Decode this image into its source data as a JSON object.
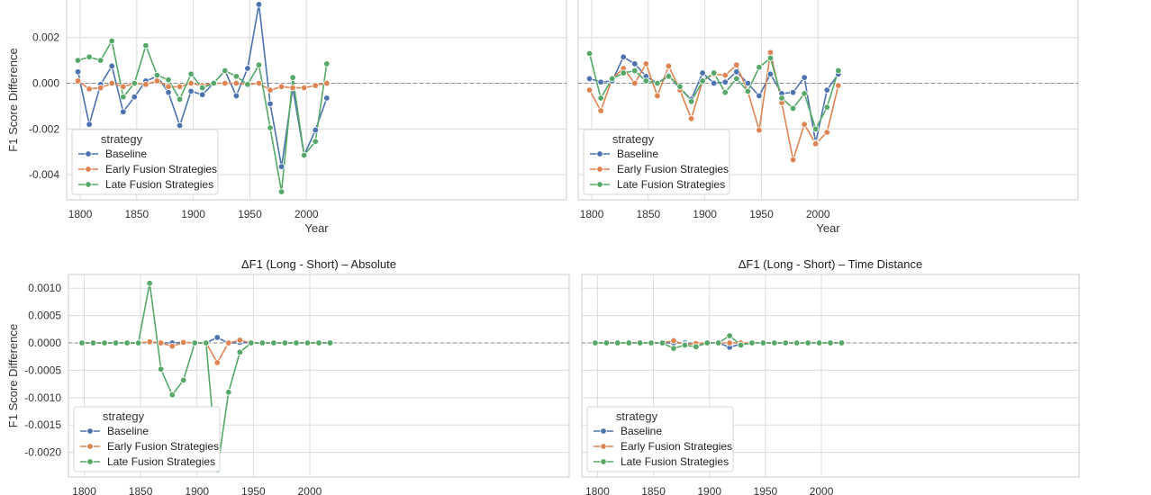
{
  "chart_data": [
    {
      "type": "line",
      "title": "",
      "xlabel": "Year",
      "ylabel": "F1 Score Difference",
      "xlim": [
        1788,
        2230
      ],
      "ylim": [
        -0.0051,
        0.0038
      ],
      "xticks": [
        "1800",
        "1850",
        "1900",
        "1950",
        "2000"
      ],
      "yticks": [
        "-0.004",
        "-0.002",
        "0.000",
        "0.002"
      ],
      "legend": {
        "title": "strategy",
        "placement": "lower-left"
      },
      "x": [
        1798,
        1808,
        1818,
        1828,
        1838,
        1848,
        1858,
        1868,
        1878,
        1888,
        1898,
        1908,
        1918,
        1928,
        1938,
        1948,
        1958,
        1968,
        1978,
        1988,
        1998,
        2008,
        2018
      ],
      "series": [
        {
          "name": "Baseline",
          "color": "#4c72b0",
          "values": [
            0.0005,
            -0.0018,
            -5e-05,
            0.00075,
            -0.00125,
            -0.0006,
            0.0001,
            0.0003,
            -0.0004,
            -0.00185,
            -0.00035,
            -0.0005,
            0.0,
            0.00055,
            -0.00055,
            0.00065,
            0.00345,
            -0.0009,
            -0.00365,
            -0.0002,
            -0.00315,
            -0.00205,
            -0.00065
          ]
        },
        {
          "name": "Early Fusion Strategies",
          "color": "#dd8452",
          "values": [
            0.0001,
            -0.00025,
            -0.0002,
            0.0,
            -0.00015,
            0.0,
            -5e-05,
            0.0001,
            -0.00015,
            -0.00015,
            0.0,
            -0.0001,
            0.0,
            0.0,
            0.0,
            -5e-05,
            0.0,
            -0.0003,
            -0.00015,
            -0.0002,
            -0.0002,
            -0.0001,
            0.0
          ]
        },
        {
          "name": "Late Fusion Strategies",
          "color": "#55a868",
          "values": [
            0.001,
            0.00115,
            0.001,
            0.00185,
            -0.0006,
            0.0,
            0.00165,
            0.00035,
            0.00015,
            -0.0007,
            0.0004,
            -0.0002,
            0.0,
            0.00055,
            0.0003,
            -5e-05,
            0.0008,
            -0.00195,
            -0.00475,
            0.00025,
            -0.00315,
            -0.00255,
            0.00085
          ]
        }
      ]
    },
    {
      "type": "line",
      "title": "",
      "xlabel": "Year",
      "ylabel": "",
      "xlim": [
        1788,
        2230
      ],
      "ylim": [
        -0.0051,
        0.0038
      ],
      "xticks": [
        "1800",
        "1850",
        "1900",
        "1950",
        "2000"
      ],
      "yticks": [],
      "legend": {
        "title": "strategy",
        "placement": "lower-left"
      },
      "x": [
        1798,
        1808,
        1818,
        1828,
        1838,
        1848,
        1858,
        1868,
        1878,
        1888,
        1898,
        1908,
        1918,
        1928,
        1938,
        1948,
        1958,
        1968,
        1978,
        1988,
        1998,
        2008,
        2018
      ],
      "series": [
        {
          "name": "Baseline",
          "color": "#4c72b0",
          "values": [
            0.0002,
            5e-05,
            0.0001,
            0.00115,
            0.00085,
            0.0003,
            0.0,
            0.00035,
            -0.00025,
            -0.0007,
            0.00045,
            0.0,
            5e-05,
            0.0005,
            0.0,
            -0.00055,
            0.0004,
            -0.00045,
            -0.0004,
            0.00025,
            -0.0026,
            -0.0003,
            0.0004
          ]
        },
        {
          "name": "Early Fusion Strategies",
          "color": "#dd8452",
          "values": [
            -0.0003,
            -0.0012,
            0.0002,
            0.00065,
            0.0,
            0.00085,
            -0.00055,
            0.00075,
            -0.0003,
            -0.00155,
            0.0001,
            0.0004,
            0.00035,
            0.0008,
            -0.00035,
            -0.00205,
            0.00135,
            -0.00085,
            -0.00335,
            -0.0018,
            -0.00265,
            -0.00215,
            -0.0001
          ]
        },
        {
          "name": "Late Fusion Strategies",
          "color": "#55a868",
          "values": [
            0.0013,
            -0.00065,
            0.0002,
            0.00045,
            0.00055,
            0.0001,
            0.0,
            0.0003,
            -0.00015,
            -0.0008,
            0.0001,
            0.00045,
            -0.0004,
            0.0002,
            -0.00035,
            0.0007,
            0.0011,
            -0.00065,
            -0.0011,
            -0.00045,
            -0.002,
            -0.00105,
            0.00055
          ]
        }
      ]
    },
    {
      "type": "line",
      "title": "ΔF1 (Long - Short) – Absolute",
      "xlabel": "",
      "ylabel": "F1 Score Difference",
      "xlim": [
        1786,
        2230
      ],
      "ylim": [
        -0.00245,
        0.00125
      ],
      "xticks": [
        "1800",
        "1850",
        "1900",
        "1950",
        "2000"
      ],
      "yticks": [
        "0.0010",
        "0.0005",
        "0.0000",
        "-0.0005",
        "-0.0010",
        "-0.0015",
        "-0.0020"
      ],
      "legend": {
        "title": "strategy",
        "placement": "lower-left"
      },
      "x": [
        1798,
        1808,
        1818,
        1828,
        1838,
        1848,
        1858,
        1868,
        1878,
        1888,
        1898,
        1908,
        1918,
        1928,
        1938,
        1948,
        1958,
        1968,
        1978,
        1988,
        1998,
        2008,
        2018
      ],
      "series": [
        {
          "name": "Baseline",
          "color": "#4c72b0",
          "values": [
            0,
            0,
            0,
            0,
            0,
            0,
            1e-05,
            0,
            0,
            1e-05,
            0,
            0,
            0.0001,
            -1e-05,
            1e-05,
            0,
            0,
            0,
            0,
            0,
            0,
            0,
            0
          ]
        },
        {
          "name": "Early Fusion Strategies",
          "color": "#dd8452",
          "values": [
            0,
            0,
            0,
            0,
            0,
            0,
            2e-05,
            0,
            -6e-05,
            1e-05,
            0,
            0,
            -0.00036,
            0,
            5e-05,
            0,
            0,
            0,
            0,
            0,
            0,
            0,
            0
          ]
        },
        {
          "name": "Late Fusion Strategies",
          "color": "#55a868",
          "values": [
            0,
            0,
            0,
            0,
            0,
            0,
            0.00109,
            -0.00048,
            -0.00095,
            -0.00068,
            0,
            0,
            -0.00232,
            -0.0009,
            -0.00017,
            0,
            0,
            0,
            0,
            0,
            0,
            0,
            0
          ]
        }
      ]
    },
    {
      "type": "line",
      "title": "ΔF1 (Long - Short) – Time Distance",
      "xlabel": "",
      "ylabel": "",
      "xlim": [
        1786,
        2230
      ],
      "ylim": [
        -0.00245,
        0.00125
      ],
      "xticks": [
        "1800",
        "1850",
        "1900",
        "1950",
        "2000"
      ],
      "yticks": [],
      "legend": {
        "title": "strategy",
        "placement": "lower-left"
      },
      "x": [
        1798,
        1808,
        1818,
        1828,
        1838,
        1848,
        1858,
        1868,
        1878,
        1888,
        1898,
        1908,
        1918,
        1928,
        1938,
        1948,
        1958,
        1968,
        1978,
        1988,
        1998,
        2008,
        2018
      ],
      "series": [
        {
          "name": "Baseline",
          "color": "#4c72b0",
          "values": [
            0,
            0,
            0,
            0,
            0,
            0,
            0,
            0,
            0,
            -2e-05,
            0,
            0,
            -8e-05,
            -2e-05,
            0,
            0,
            0,
            0,
            0,
            0,
            0,
            0,
            0
          ]
        },
        {
          "name": "Early Fusion Strategies",
          "color": "#dd8452",
          "values": [
            0,
            0,
            0,
            0,
            0,
            0,
            0,
            4e-05,
            -3e-05,
            -1e-05,
            0,
            0,
            0,
            0,
            0,
            0,
            0,
            0,
            0,
            0,
            0,
            0,
            0
          ]
        },
        {
          "name": "Late Fusion Strategies",
          "color": "#55a868",
          "values": [
            0,
            0,
            0,
            0,
            0,
            0,
            0,
            -0.0001,
            -4e-05,
            -7e-05,
            0,
            0,
            0.00013,
            -4e-05,
            0,
            0,
            0,
            0,
            0,
            0,
            0,
            0,
            0
          ]
        }
      ]
    }
  ]
}
